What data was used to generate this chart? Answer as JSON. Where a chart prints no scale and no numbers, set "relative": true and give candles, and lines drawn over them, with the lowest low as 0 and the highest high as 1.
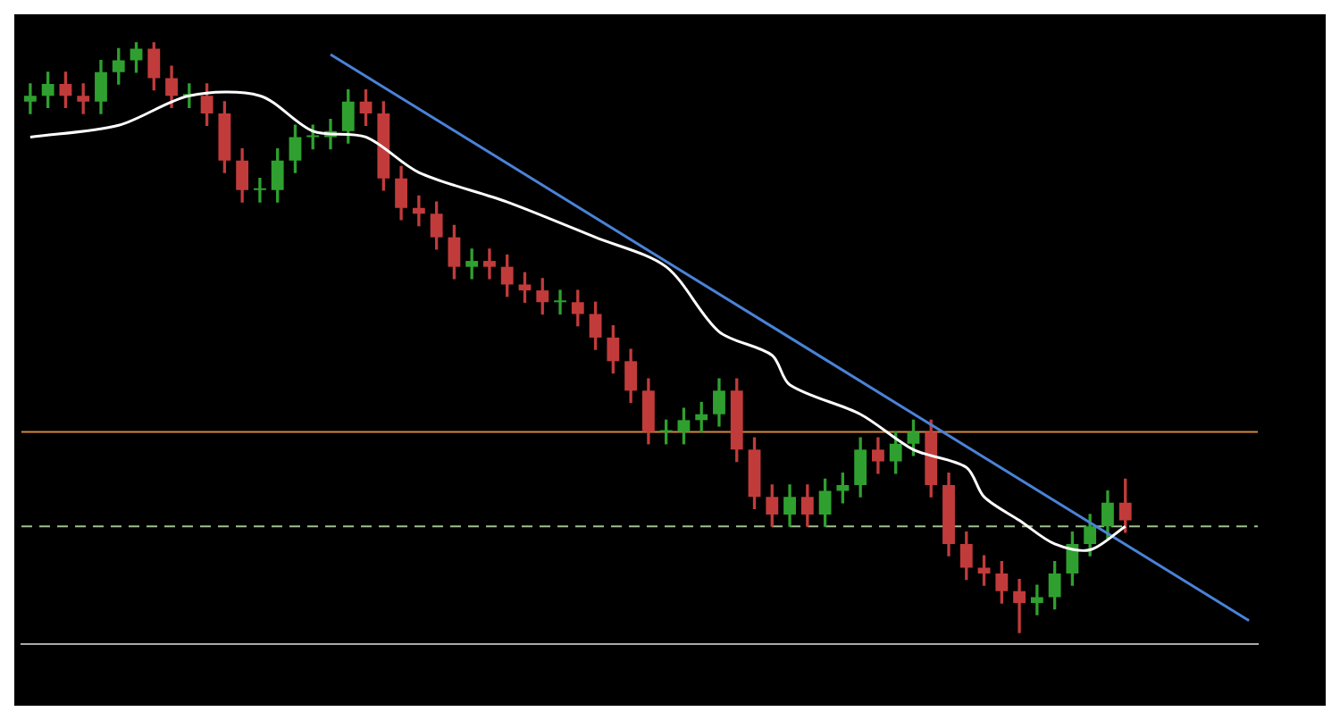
{
  "chart_data": {
    "type": "candlestick",
    "relative": true,
    "grid": false,
    "legend": false,
    "categories": [
      null,
      null,
      null,
      null,
      null,
      null,
      null,
      null,
      null,
      null,
      null,
      null,
      null,
      null,
      null,
      null,
      null,
      null,
      null,
      null,
      null,
      null,
      null,
      null,
      null,
      null,
      null,
      null,
      null,
      null,
      null,
      null,
      null,
      null,
      null,
      null,
      null,
      null,
      null,
      null,
      null,
      null,
      null,
      null,
      null,
      null,
      null,
      null,
      null,
      null,
      null,
      null,
      null,
      null,
      null,
      null,
      null,
      null,
      null,
      null,
      null,
      null,
      null,
      null,
      null,
      null,
      null,
      null,
      null,
      null
    ],
    "ohlc": [
      [
        0.9,
        0.93,
        0.88,
        0.91
      ],
      [
        0.91,
        0.95,
        0.89,
        0.93
      ],
      [
        0.93,
        0.95,
        0.89,
        0.91
      ],
      [
        0.91,
        0.93,
        0.88,
        0.9
      ],
      [
        0.9,
        0.97,
        0.88,
        0.95
      ],
      [
        0.95,
        0.99,
        0.93,
        0.97
      ],
      [
        0.97,
        1.0,
        0.95,
        0.99
      ],
      [
        0.99,
        1.0,
        0.92,
        0.94
      ],
      [
        0.94,
        0.96,
        0.89,
        0.91
      ],
      [
        0.91,
        0.93,
        0.89,
        0.91
      ],
      [
        0.91,
        0.93,
        0.86,
        0.88
      ],
      [
        0.88,
        0.9,
        0.78,
        0.8
      ],
      [
        0.8,
        0.82,
        0.73,
        0.75
      ],
      [
        0.75,
        0.77,
        0.73,
        0.75
      ],
      [
        0.75,
        0.82,
        0.73,
        0.8
      ],
      [
        0.8,
        0.86,
        0.78,
        0.84
      ],
      [
        0.84,
        0.86,
        0.82,
        0.84
      ],
      [
        0.84,
        0.87,
        0.82,
        0.85
      ],
      [
        0.85,
        0.92,
        0.83,
        0.9
      ],
      [
        0.9,
        0.92,
        0.86,
        0.88
      ],
      [
        0.88,
        0.9,
        0.75,
        0.77
      ],
      [
        0.77,
        0.79,
        0.7,
        0.72
      ],
      [
        0.72,
        0.74,
        0.69,
        0.71
      ],
      [
        0.71,
        0.73,
        0.65,
        0.67
      ],
      [
        0.67,
        0.69,
        0.6,
        0.62
      ],
      [
        0.62,
        0.65,
        0.6,
        0.63
      ],
      [
        0.63,
        0.65,
        0.6,
        0.62
      ],
      [
        0.62,
        0.64,
        0.57,
        0.59
      ],
      [
        0.59,
        0.61,
        0.56,
        0.58
      ],
      [
        0.58,
        0.6,
        0.54,
        0.56
      ],
      [
        0.56,
        0.58,
        0.54,
        0.56
      ],
      [
        0.56,
        0.58,
        0.52,
        0.54
      ],
      [
        0.54,
        0.56,
        0.48,
        0.5
      ],
      [
        0.5,
        0.52,
        0.44,
        0.46
      ],
      [
        0.46,
        0.48,
        0.39,
        0.41
      ],
      [
        0.41,
        0.43,
        0.32,
        0.34
      ],
      [
        0.34,
        0.36,
        0.32,
        0.34
      ],
      [
        0.34,
        0.38,
        0.32,
        0.36
      ],
      [
        0.36,
        0.39,
        0.34,
        0.37
      ],
      [
        0.37,
        0.43,
        0.35,
        0.41
      ],
      [
        0.41,
        0.43,
        0.29,
        0.31
      ],
      [
        0.31,
        0.33,
        0.21,
        0.23
      ],
      [
        0.23,
        0.25,
        0.18,
        0.2
      ],
      [
        0.2,
        0.25,
        0.18,
        0.23
      ],
      [
        0.23,
        0.25,
        0.18,
        0.2
      ],
      [
        0.2,
        0.26,
        0.18,
        0.24
      ],
      [
        0.24,
        0.27,
        0.22,
        0.25
      ],
      [
        0.25,
        0.33,
        0.23,
        0.31
      ],
      [
        0.31,
        0.33,
        0.27,
        0.29
      ],
      [
        0.29,
        0.34,
        0.27,
        0.32
      ],
      [
        0.32,
        0.36,
        0.3,
        0.34
      ],
      [
        0.34,
        0.36,
        0.23,
        0.25
      ],
      [
        0.25,
        0.27,
        0.13,
        0.15
      ],
      [
        0.15,
        0.17,
        0.09,
        0.11
      ],
      [
        0.11,
        0.13,
        0.08,
        0.1
      ],
      [
        0.1,
        0.12,
        0.05,
        0.07
      ],
      [
        0.07,
        0.09,
        0.0,
        0.05
      ],
      [
        0.05,
        0.08,
        0.03,
        0.06
      ],
      [
        0.06,
        0.12,
        0.04,
        0.1
      ],
      [
        0.1,
        0.17,
        0.08,
        0.15
      ],
      [
        0.15,
        0.2,
        0.13,
        0.18
      ],
      [
        0.18,
        0.24,
        0.16,
        0.22
      ],
      [
        0.22,
        0.26,
        0.17,
        0.19
      ],
      null,
      null,
      null,
      null,
      null,
      null,
      null
    ],
    "series": [
      {
        "type": "line",
        "color": "#ffffff",
        "values": [
          0.84,
          null,
          null,
          null,
          null,
          0.86,
          null,
          null,
          null,
          0.91,
          null,
          null,
          null,
          0.91,
          null,
          null,
          0.85,
          null,
          null,
          0.84,
          null,
          null,
          0.78,
          null,
          null,
          null,
          null,
          0.73,
          null,
          null,
          null,
          null,
          0.67,
          null,
          null,
          null,
          0.62,
          null,
          null,
          0.51,
          null,
          null,
          0.47,
          0.42,
          null,
          null,
          null,
          0.37,
          null,
          null,
          0.31,
          null,
          null,
          0.28,
          0.23,
          null,
          0.19,
          null,
          0.15,
          null,
          0.14,
          null,
          0.18,
          null,
          null,
          null,
          null,
          null,
          null,
          null
        ]
      },
      {
        "type": "line",
        "color": "#4a82d8",
        "values": [
          null,
          null,
          null,
          null,
          null,
          null,
          null,
          null,
          null,
          null,
          null,
          null,
          null,
          null,
          null,
          null,
          null,
          0.98,
          null,
          null,
          null,
          null,
          null,
          null,
          null,
          null,
          null,
          null,
          null,
          null,
          null,
          null,
          null,
          null,
          null,
          null,
          null,
          null,
          null,
          null,
          null,
          null,
          null,
          null,
          null,
          null,
          null,
          null,
          null,
          null,
          null,
          null,
          null,
          null,
          null,
          null,
          null,
          null,
          null,
          null,
          null,
          null,
          null,
          null,
          null,
          null,
          null,
          null,
          null,
          0.02
        ]
      }
    ],
    "ref_lines": [
      {
        "axis": "y",
        "value": 0.34,
        "color": "#d08a3c",
        "line_style": "solid"
      },
      {
        "axis": "y",
        "value": 0.18,
        "color": "#9fbf8f",
        "line_style": "dashed"
      }
    ]
  }
}
